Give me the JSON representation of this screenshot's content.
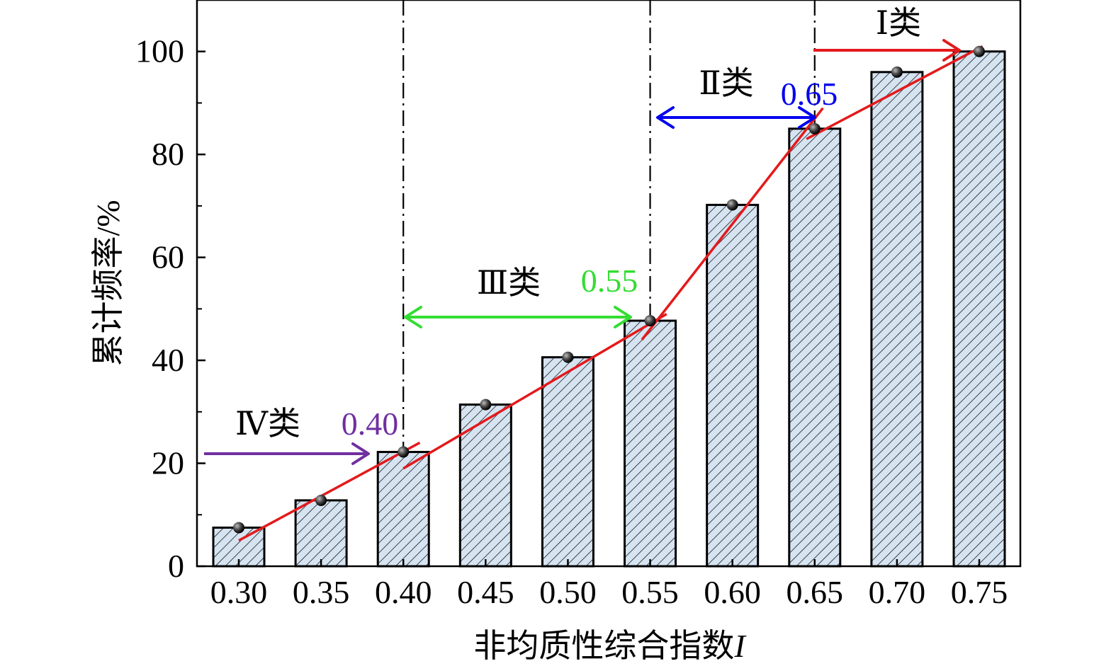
{
  "chart_data": {
    "type": "bar",
    "categories": [
      "0.30",
      "0.35",
      "0.40",
      "0.45",
      "0.50",
      "0.55",
      "0.60",
      "0.65",
      "0.70",
      "0.75"
    ],
    "values": [
      7.5,
      12.8,
      22.2,
      31.4,
      40.6,
      47.7,
      70.2,
      85.0,
      96.0,
      100.0
    ],
    "xlabel_text": "非均质性综合指数",
    "xlabel_var": "I",
    "ylabel": "累计频率/%",
    "ylim": [
      0,
      110
    ],
    "yticks": [
      "0",
      "20",
      "40",
      "60",
      "80",
      "100"
    ],
    "bar_fill": "#d6e4f2",
    "bar_hatch": "diagonal",
    "point_color": "#1a1a1a",
    "fit_line_color": "#e31a1c",
    "fit_lines": [
      {
        "x": [
          0.3,
          0.41
        ],
        "y": [
          5,
          24
        ]
      },
      {
        "x": [
          0.4,
          0.56
        ],
        "y": [
          19,
          49
        ]
      },
      {
        "x": [
          0.545,
          0.655
        ],
        "y": [
          44,
          89
        ]
      },
      {
        "x": [
          0.645,
          0.752
        ],
        "y": [
          83,
          101
        ]
      }
    ],
    "boundaries": [
      0.4,
      0.55,
      0.65
    ],
    "annotations": [
      {
        "label": "Ⅳ类",
        "value": "0.40",
        "color": "#7030a0"
      },
      {
        "label": "Ⅲ类",
        "value": "0.55",
        "color": "#33dd33"
      },
      {
        "label": "Ⅱ类",
        "value": "0.65",
        "color": "#0000ee"
      },
      {
        "label": "Ⅰ类",
        "value": "",
        "color": "#e31a1c"
      }
    ]
  }
}
